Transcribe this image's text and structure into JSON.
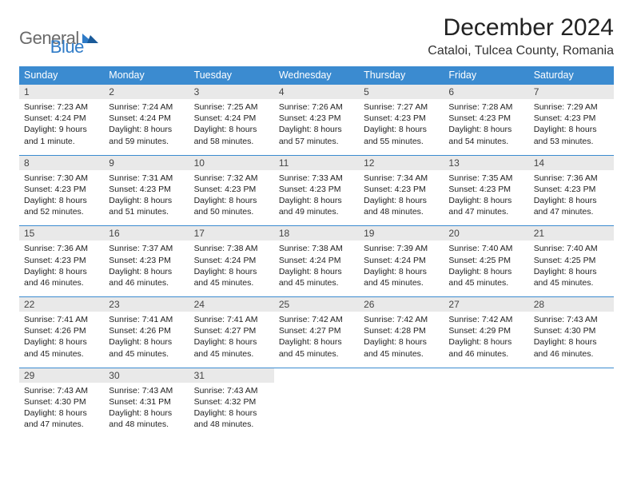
{
  "brand": {
    "general": "General",
    "blue": "Blue"
  },
  "title": "December 2024",
  "location": "Cataloi, Tulcea County, Romania",
  "colors": {
    "header_bg": "#3b8bd0",
    "header_text": "#ffffff",
    "daynum_bg": "#e9e9e9",
    "row_border": "#3b8bd0",
    "logo_gray": "#6a6a6a",
    "logo_blue": "#2f7bc7",
    "page_bg": "#ffffff"
  },
  "typography": {
    "title_fontsize": 30,
    "location_fontsize": 16,
    "weekday_fontsize": 12.5,
    "daynum_fontsize": 12,
    "cell_fontsize": 10.5
  },
  "weekdays": [
    "Sunday",
    "Monday",
    "Tuesday",
    "Wednesday",
    "Thursday",
    "Friday",
    "Saturday"
  ],
  "weeks": [
    [
      {
        "n": "1",
        "sr": "Sunrise: 7:23 AM",
        "ss": "Sunset: 4:24 PM",
        "dl": "Daylight: 9 hours and 1 minute."
      },
      {
        "n": "2",
        "sr": "Sunrise: 7:24 AM",
        "ss": "Sunset: 4:24 PM",
        "dl": "Daylight: 8 hours and 59 minutes."
      },
      {
        "n": "3",
        "sr": "Sunrise: 7:25 AM",
        "ss": "Sunset: 4:24 PM",
        "dl": "Daylight: 8 hours and 58 minutes."
      },
      {
        "n": "4",
        "sr": "Sunrise: 7:26 AM",
        "ss": "Sunset: 4:23 PM",
        "dl": "Daylight: 8 hours and 57 minutes."
      },
      {
        "n": "5",
        "sr": "Sunrise: 7:27 AM",
        "ss": "Sunset: 4:23 PM",
        "dl": "Daylight: 8 hours and 55 minutes."
      },
      {
        "n": "6",
        "sr": "Sunrise: 7:28 AM",
        "ss": "Sunset: 4:23 PM",
        "dl": "Daylight: 8 hours and 54 minutes."
      },
      {
        "n": "7",
        "sr": "Sunrise: 7:29 AM",
        "ss": "Sunset: 4:23 PM",
        "dl": "Daylight: 8 hours and 53 minutes."
      }
    ],
    [
      {
        "n": "8",
        "sr": "Sunrise: 7:30 AM",
        "ss": "Sunset: 4:23 PM",
        "dl": "Daylight: 8 hours and 52 minutes."
      },
      {
        "n": "9",
        "sr": "Sunrise: 7:31 AM",
        "ss": "Sunset: 4:23 PM",
        "dl": "Daylight: 8 hours and 51 minutes."
      },
      {
        "n": "10",
        "sr": "Sunrise: 7:32 AM",
        "ss": "Sunset: 4:23 PM",
        "dl": "Daylight: 8 hours and 50 minutes."
      },
      {
        "n": "11",
        "sr": "Sunrise: 7:33 AM",
        "ss": "Sunset: 4:23 PM",
        "dl": "Daylight: 8 hours and 49 minutes."
      },
      {
        "n": "12",
        "sr": "Sunrise: 7:34 AM",
        "ss": "Sunset: 4:23 PM",
        "dl": "Daylight: 8 hours and 48 minutes."
      },
      {
        "n": "13",
        "sr": "Sunrise: 7:35 AM",
        "ss": "Sunset: 4:23 PM",
        "dl": "Daylight: 8 hours and 47 minutes."
      },
      {
        "n": "14",
        "sr": "Sunrise: 7:36 AM",
        "ss": "Sunset: 4:23 PM",
        "dl": "Daylight: 8 hours and 47 minutes."
      }
    ],
    [
      {
        "n": "15",
        "sr": "Sunrise: 7:36 AM",
        "ss": "Sunset: 4:23 PM",
        "dl": "Daylight: 8 hours and 46 minutes."
      },
      {
        "n": "16",
        "sr": "Sunrise: 7:37 AM",
        "ss": "Sunset: 4:23 PM",
        "dl": "Daylight: 8 hours and 46 minutes."
      },
      {
        "n": "17",
        "sr": "Sunrise: 7:38 AM",
        "ss": "Sunset: 4:24 PM",
        "dl": "Daylight: 8 hours and 45 minutes."
      },
      {
        "n": "18",
        "sr": "Sunrise: 7:38 AM",
        "ss": "Sunset: 4:24 PM",
        "dl": "Daylight: 8 hours and 45 minutes."
      },
      {
        "n": "19",
        "sr": "Sunrise: 7:39 AM",
        "ss": "Sunset: 4:24 PM",
        "dl": "Daylight: 8 hours and 45 minutes."
      },
      {
        "n": "20",
        "sr": "Sunrise: 7:40 AM",
        "ss": "Sunset: 4:25 PM",
        "dl": "Daylight: 8 hours and 45 minutes."
      },
      {
        "n": "21",
        "sr": "Sunrise: 7:40 AM",
        "ss": "Sunset: 4:25 PM",
        "dl": "Daylight: 8 hours and 45 minutes."
      }
    ],
    [
      {
        "n": "22",
        "sr": "Sunrise: 7:41 AM",
        "ss": "Sunset: 4:26 PM",
        "dl": "Daylight: 8 hours and 45 minutes."
      },
      {
        "n": "23",
        "sr": "Sunrise: 7:41 AM",
        "ss": "Sunset: 4:26 PM",
        "dl": "Daylight: 8 hours and 45 minutes."
      },
      {
        "n": "24",
        "sr": "Sunrise: 7:41 AM",
        "ss": "Sunset: 4:27 PM",
        "dl": "Daylight: 8 hours and 45 minutes."
      },
      {
        "n": "25",
        "sr": "Sunrise: 7:42 AM",
        "ss": "Sunset: 4:27 PM",
        "dl": "Daylight: 8 hours and 45 minutes."
      },
      {
        "n": "26",
        "sr": "Sunrise: 7:42 AM",
        "ss": "Sunset: 4:28 PM",
        "dl": "Daylight: 8 hours and 45 minutes."
      },
      {
        "n": "27",
        "sr": "Sunrise: 7:42 AM",
        "ss": "Sunset: 4:29 PM",
        "dl": "Daylight: 8 hours and 46 minutes."
      },
      {
        "n": "28",
        "sr": "Sunrise: 7:43 AM",
        "ss": "Sunset: 4:30 PM",
        "dl": "Daylight: 8 hours and 46 minutes."
      }
    ],
    [
      {
        "n": "29",
        "sr": "Sunrise: 7:43 AM",
        "ss": "Sunset: 4:30 PM",
        "dl": "Daylight: 8 hours and 47 minutes."
      },
      {
        "n": "30",
        "sr": "Sunrise: 7:43 AM",
        "ss": "Sunset: 4:31 PM",
        "dl": "Daylight: 8 hours and 48 minutes."
      },
      {
        "n": "31",
        "sr": "Sunrise: 7:43 AM",
        "ss": "Sunset: 4:32 PM",
        "dl": "Daylight: 8 hours and 48 minutes."
      },
      null,
      null,
      null,
      null
    ]
  ]
}
